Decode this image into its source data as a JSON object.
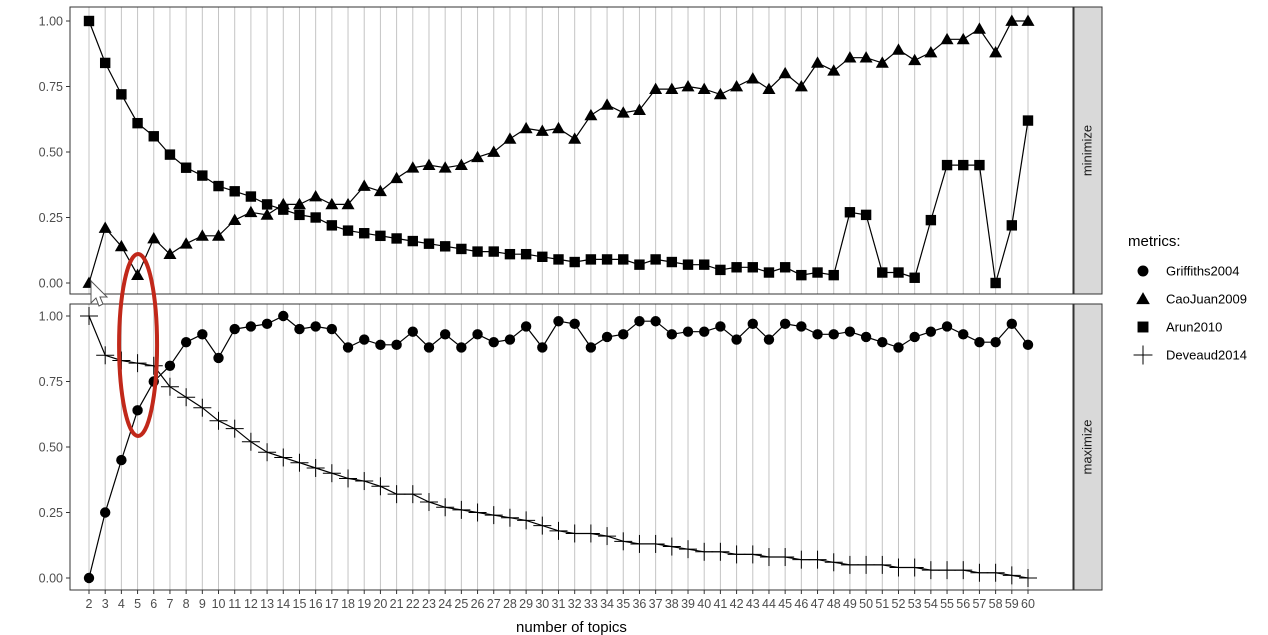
{
  "chart_data": {
    "type": "line",
    "xlabel": "number of topics",
    "x": [
      2,
      3,
      4,
      5,
      6,
      7,
      8,
      9,
      10,
      11,
      12,
      13,
      14,
      15,
      16,
      17,
      18,
      19,
      20,
      21,
      22,
      23,
      24,
      25,
      26,
      27,
      28,
      29,
      30,
      31,
      32,
      33,
      34,
      35,
      36,
      37,
      38,
      39,
      40,
      41,
      42,
      43,
      44,
      45,
      46,
      47,
      48,
      49,
      50,
      51,
      52,
      53,
      54,
      55,
      56,
      57,
      58,
      59,
      60
    ],
    "legend": {
      "title": "metrics:",
      "placement": "right"
    },
    "grid": "vertical",
    "facets": [
      {
        "strip_label": "minimize",
        "ylim": [
          0,
          1
        ],
        "yticks": [
          "0.00",
          "0.25",
          "0.50",
          "0.75",
          "1.00"
        ],
        "series": [
          {
            "name": "CaoJuan2009",
            "marker": "triangle",
            "values": [
              0.0,
              0.21,
              0.14,
              0.03,
              0.17,
              0.11,
              0.15,
              0.18,
              0.18,
              0.24,
              0.27,
              0.26,
              0.3,
              0.3,
              0.33,
              0.3,
              0.3,
              0.37,
              0.35,
              0.4,
              0.44,
              0.45,
              0.44,
              0.45,
              0.48,
              0.5,
              0.55,
              0.59,
              0.58,
              0.59,
              0.55,
              0.64,
              0.68,
              0.65,
              0.66,
              0.74,
              0.74,
              0.75,
              0.74,
              0.72,
              0.75,
              0.78,
              0.74,
              0.8,
              0.75,
              0.84,
              0.81,
              0.86,
              0.86,
              0.84,
              0.89,
              0.85,
              0.88,
              0.93,
              0.93,
              0.97,
              0.88,
              1.0,
              1.0
            ]
          },
          {
            "name": "Arun2010",
            "marker": "square",
            "values": [
              1.0,
              0.84,
              0.72,
              0.61,
              0.56,
              0.49,
              0.44,
              0.41,
              0.37,
              0.35,
              0.33,
              0.3,
              0.28,
              0.26,
              0.25,
              0.22,
              0.2,
              0.19,
              0.18,
              0.17,
              0.16,
              0.15,
              0.14,
              0.13,
              0.12,
              0.12,
              0.11,
              0.11,
              0.1,
              0.09,
              0.08,
              0.09,
              0.09,
              0.09,
              0.07,
              0.09,
              0.08,
              0.07,
              0.07,
              0.05,
              0.06,
              0.06,
              0.04,
              0.06,
              0.03,
              0.04,
              0.03,
              0.27,
              0.26,
              0.04,
              0.04,
              0.02,
              0.24,
              0.45,
              0.45,
              0.45,
              0.0,
              0.22,
              0.62
            ]
          }
        ]
      },
      {
        "strip_label": "maximize",
        "ylim": [
          0,
          1
        ],
        "yticks": [
          "0.00",
          "0.25",
          "0.50",
          "0.75",
          "1.00"
        ],
        "series": [
          {
            "name": "Griffiths2004",
            "marker": "circle",
            "values": [
              0.0,
              0.25,
              0.45,
              0.64,
              0.75,
              0.81,
              0.9,
              0.93,
              0.84,
              0.95,
              0.96,
              0.97,
              1.0,
              0.95,
              0.96,
              0.95,
              0.88,
              0.91,
              0.89,
              0.89,
              0.94,
              0.88,
              0.93,
              0.88,
              0.93,
              0.9,
              0.91,
              0.96,
              0.88,
              0.98,
              0.97,
              0.88,
              0.92,
              0.93,
              0.98,
              0.98,
              0.93,
              0.94,
              0.94,
              0.96,
              0.91,
              0.97,
              0.91,
              0.97,
              0.96,
              0.93,
              0.93,
              0.94,
              0.92,
              0.9,
              0.88,
              0.92,
              0.94,
              0.96,
              0.93,
              0.9,
              0.9,
              0.97,
              0.89
            ]
          },
          {
            "name": "Deveaud2014",
            "marker": "plus",
            "values": [
              1.0,
              0.85,
              0.83,
              0.82,
              0.81,
              0.73,
              0.69,
              0.65,
              0.6,
              0.57,
              0.52,
              0.48,
              0.46,
              0.44,
              0.42,
              0.4,
              0.38,
              0.37,
              0.35,
              0.32,
              0.32,
              0.29,
              0.27,
              0.26,
              0.25,
              0.24,
              0.23,
              0.22,
              0.2,
              0.18,
              0.17,
              0.17,
              0.16,
              0.14,
              0.13,
              0.13,
              0.12,
              0.11,
              0.1,
              0.1,
              0.09,
              0.09,
              0.08,
              0.08,
              0.07,
              0.07,
              0.06,
              0.05,
              0.05,
              0.05,
              0.04,
              0.04,
              0.03,
              0.03,
              0.03,
              0.02,
              0.02,
              0.01,
              0.0
            ]
          }
        ]
      }
    ]
  },
  "legend_entries": [
    {
      "label": "Griffiths2004",
      "marker": "circle"
    },
    {
      "label": "CaoJuan2009",
      "marker": "triangle"
    },
    {
      "label": "Arun2010",
      "marker": "square"
    },
    {
      "label": "Deveaud2014",
      "marker": "plus"
    }
  ],
  "annotation": {
    "shape": "ellipse",
    "color": "#c1281a",
    "around_x": 5
  }
}
